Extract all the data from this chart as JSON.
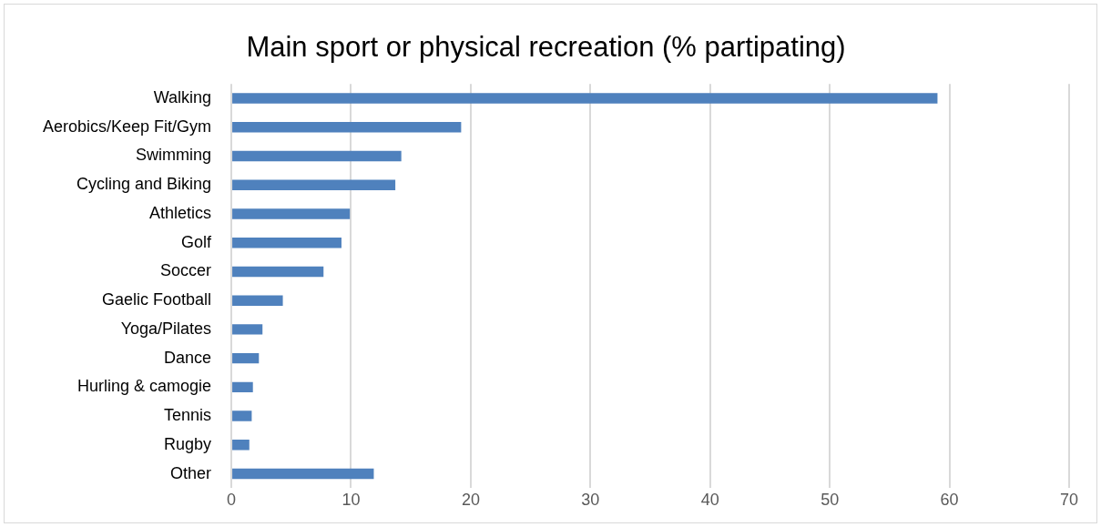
{
  "chart_data": {
    "type": "bar",
    "orientation": "horizontal",
    "title": "Main sport or physical recreation (% partipating)",
    "categories": [
      "Walking",
      "Aerobics/Keep Fit/Gym",
      "Swimming",
      "Cycling and Biking",
      "Athletics",
      "Golf",
      "Soccer",
      "Gaelic Football",
      "Yoga/Pilates",
      "Dance",
      "Hurling & camogie",
      "Tennis",
      "Rugby",
      "Other"
    ],
    "values": [
      59.0,
      19.2,
      14.2,
      13.7,
      9.9,
      9.2,
      7.7,
      4.3,
      2.6,
      2.3,
      1.8,
      1.7,
      1.5,
      11.9
    ],
    "color": "#4f81bd",
    "xlim": [
      0,
      70
    ],
    "xticks": [
      0,
      10,
      20,
      30,
      40,
      50,
      60,
      70
    ],
    "grid": "x",
    "legend": false
  }
}
